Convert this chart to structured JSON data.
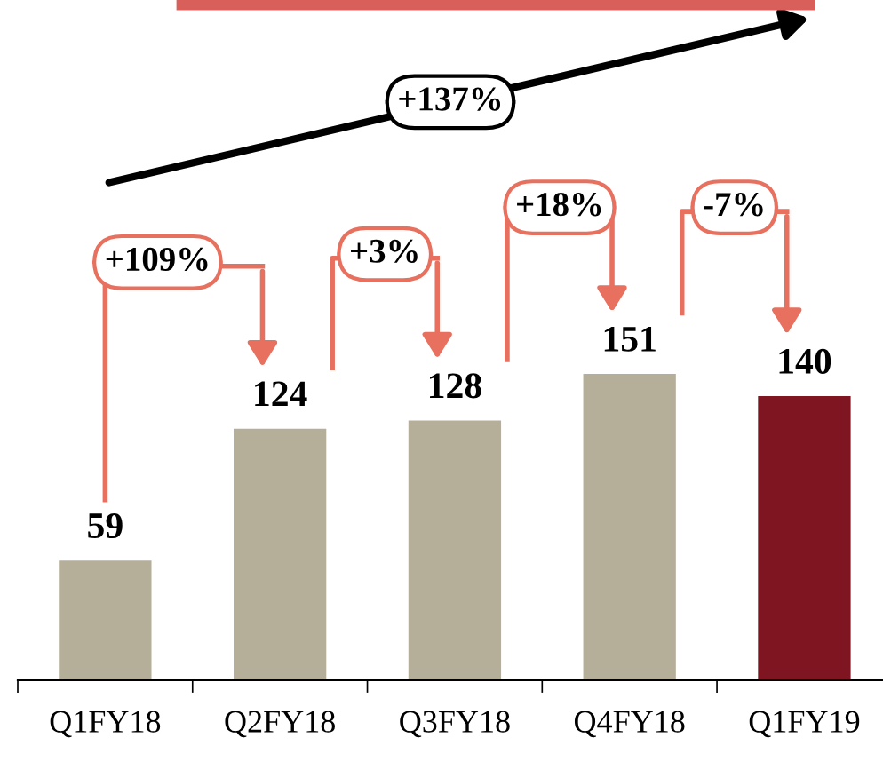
{
  "chart_data": {
    "type": "bar",
    "categories": [
      "Q1FY18",
      "Q2FY18",
      "Q3FY18",
      "Q4FY18",
      "Q1FY19"
    ],
    "values": [
      59,
      124,
      128,
      151,
      140
    ],
    "colors": [
      "#b5af9a",
      "#b5af9a",
      "#b5af9a",
      "#b5af9a",
      "#7f1520"
    ],
    "data_labels": true,
    "annotations": [
      "+137%",
      "+109%",
      "+3%",
      "+18%",
      "-7%"
    ]
  }
}
